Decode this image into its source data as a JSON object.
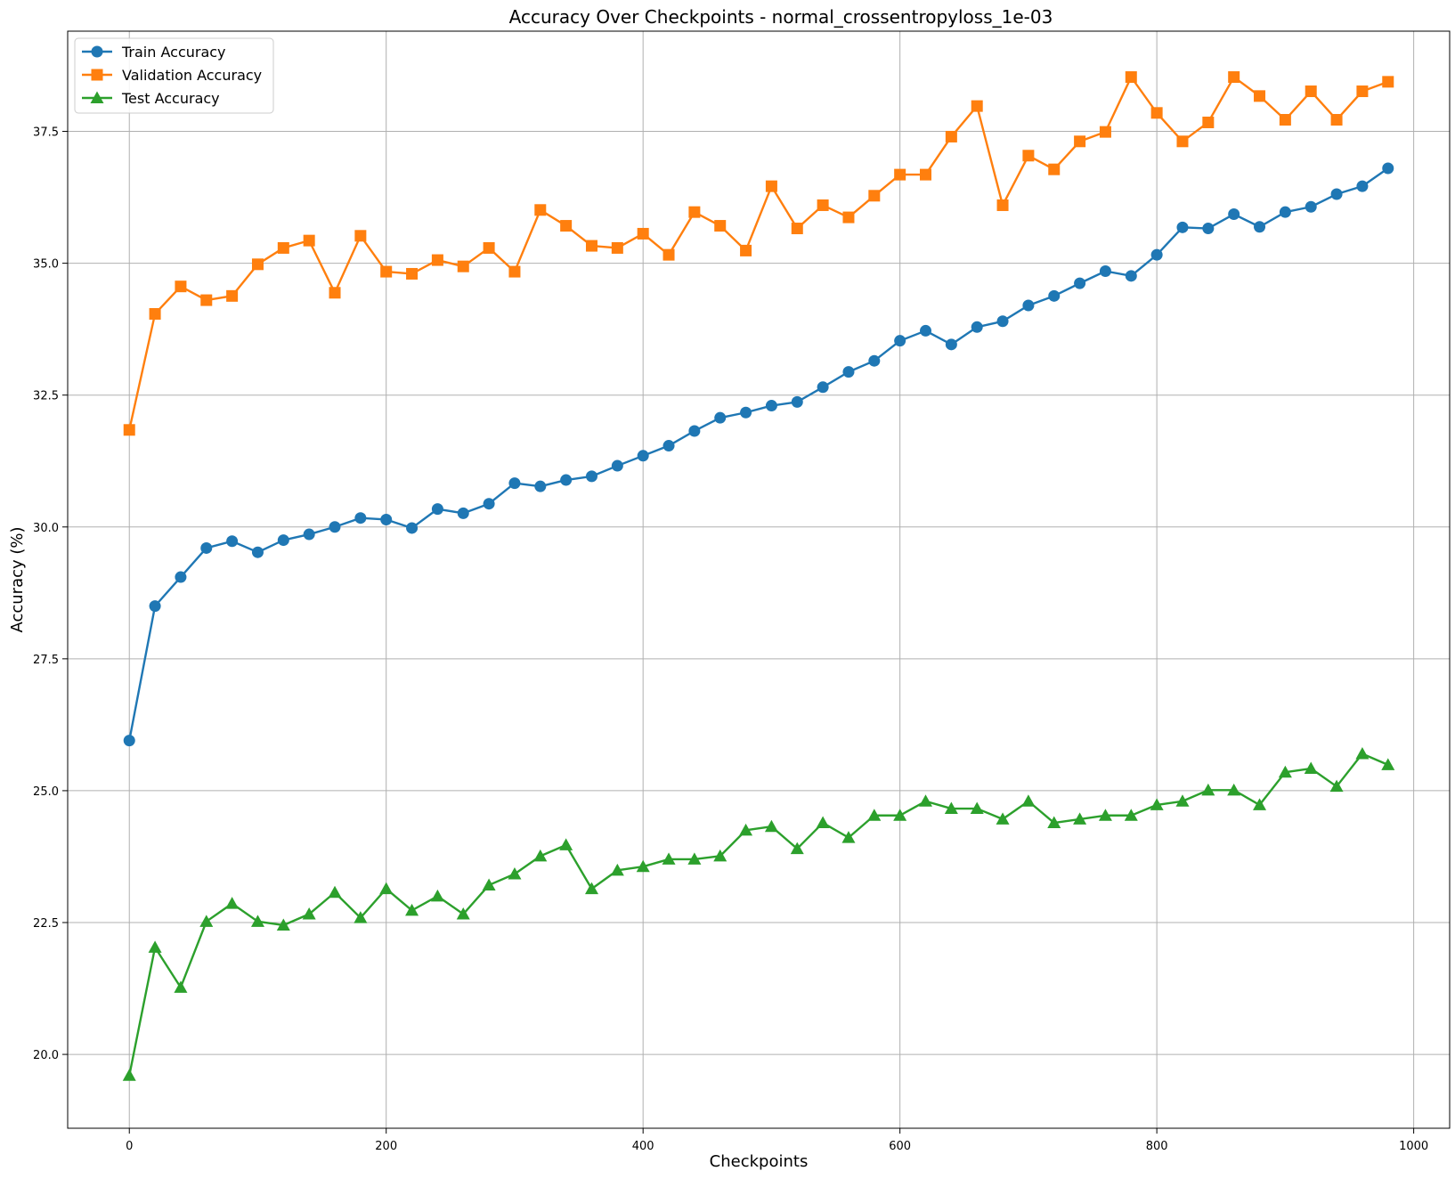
{
  "chart_data": {
    "type": "line",
    "title": "Accuracy Over Checkpoints - normal_crossentropyloss_1e-03",
    "xlabel": "Checkpoints",
    "ylabel": "Accuracy (%)",
    "xlim": [
      -48,
      1028
    ],
    "ylim": [
      18.6,
      39.4
    ],
    "xticks": [
      0,
      200,
      400,
      600,
      800,
      1000
    ],
    "xtick_labels": [
      "0",
      "200",
      "400",
      "600",
      "800",
      "1000"
    ],
    "yticks": [
      20.0,
      22.5,
      25.0,
      27.5,
      30.0,
      32.5,
      35.0,
      37.5
    ],
    "ytick_labels": [
      "20.0",
      "22.5",
      "25.0",
      "27.5",
      "30.0",
      "32.5",
      "35.0",
      "37.5"
    ],
    "grid": true,
    "legend_position": "top-left",
    "x": [
      0,
      20,
      40,
      60,
      80,
      100,
      120,
      140,
      160,
      180,
      200,
      220,
      240,
      260,
      280,
      300,
      320,
      340,
      360,
      380,
      400,
      420,
      440,
      460,
      480,
      500,
      520,
      540,
      560,
      580,
      600,
      620,
      640,
      660,
      680,
      700,
      720,
      740,
      760,
      780,
      800,
      820,
      840,
      860,
      880,
      900,
      920,
      940,
      960,
      980
    ],
    "series": [
      {
        "name": "Train Accuracy",
        "color": "#1f77b4",
        "marker": "circle",
        "values": [
          25.95,
          28.5,
          29.05,
          29.6,
          29.73,
          29.52,
          29.75,
          29.86,
          30.0,
          30.17,
          30.14,
          29.98,
          30.34,
          30.26,
          30.44,
          30.83,
          30.77,
          30.89,
          30.96,
          31.16,
          31.35,
          31.54,
          31.82,
          32.07,
          32.17,
          32.3,
          32.37,
          32.65,
          32.94,
          33.15,
          33.53,
          33.72,
          33.46,
          33.79,
          33.9,
          34.2,
          34.38,
          34.62,
          34.85,
          34.76,
          35.16,
          35.68,
          35.66,
          35.93,
          35.69,
          35.97,
          36.07,
          36.31,
          36.46,
          36.8
        ]
      },
      {
        "name": "Validation Accuracy",
        "color": "#ff7f0e",
        "marker": "square",
        "values": [
          31.84,
          34.04,
          34.56,
          34.3,
          34.38,
          34.98,
          35.29,
          35.43,
          34.44,
          35.52,
          34.84,
          34.8,
          35.06,
          34.94,
          35.29,
          34.84,
          36.01,
          35.71,
          35.33,
          35.29,
          35.56,
          35.16,
          35.97,
          35.71,
          35.24,
          36.46,
          35.66,
          36.1,
          35.87,
          36.28,
          36.68,
          36.68,
          37.4,
          37.98,
          36.1,
          37.04,
          36.78,
          37.31,
          37.49,
          38.53,
          37.85,
          37.31,
          37.67,
          38.53,
          38.17,
          37.72,
          38.26,
          37.72,
          38.26,
          38.44
        ]
      },
      {
        "name": "Test Accuracy",
        "color": "#2ca02c",
        "marker": "triangle",
        "values": [
          19.6,
          22.03,
          21.27,
          22.52,
          22.86,
          22.52,
          22.45,
          22.66,
          23.07,
          22.59,
          23.14,
          22.73,
          23.0,
          22.66,
          23.21,
          23.42,
          23.76,
          23.97,
          23.14,
          23.49,
          23.56,
          23.7,
          23.7,
          23.76,
          24.25,
          24.32,
          23.9,
          24.39,
          24.11,
          24.53,
          24.53,
          24.8,
          24.66,
          24.66,
          24.46,
          24.8,
          24.39,
          24.46,
          24.53,
          24.53,
          24.73,
          24.8,
          25.01,
          25.01,
          24.73,
          25.35,
          25.42,
          25.08,
          25.7,
          25.49
        ]
      }
    ]
  }
}
